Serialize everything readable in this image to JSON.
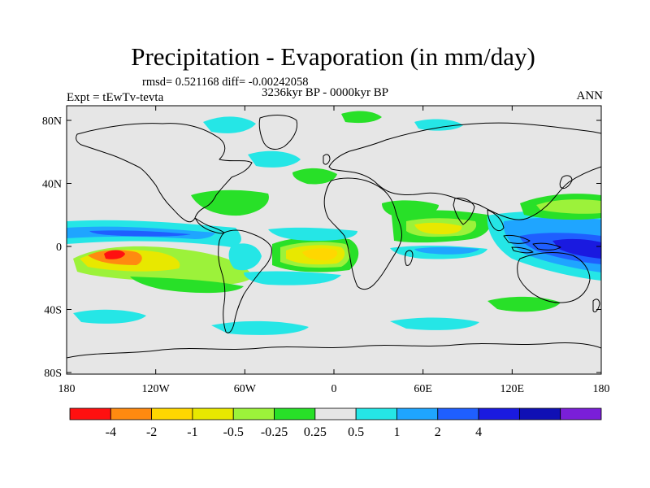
{
  "title": "Precipitation - Evaporation (in mm/day)",
  "stats": "rmsd= 0.521168 diff= -0.00242058",
  "expt": "Expt = tEwTv-tevta",
  "period": "3236kyr BP - 0000kyr BP",
  "season": "ANN",
  "lat_ticks": [
    "80N",
    "40N",
    "0",
    "40S",
    "80S"
  ],
  "lon_ticks": [
    "180",
    "120W",
    "60W",
    "0",
    "60E",
    "120E",
    "180"
  ],
  "colorbar": {
    "colors": [
      "#ff1010",
      "#ff8a10",
      "#ffd700",
      "#e8e800",
      "#9cf23a",
      "#28e028",
      "#e6e6e6",
      "#25e6e6",
      "#1fa5ff",
      "#1f5fff",
      "#1a1ae0",
      "#1010b4",
      "#7a1fd8"
    ],
    "labels": [
      "-4",
      "-2",
      "-1",
      "-0.5",
      "-0.25",
      "0.25",
      "0.5",
      "1",
      "2",
      "4"
    ]
  },
  "colors": {
    "ocean": "#e6e6e6",
    "coast": "#000000"
  }
}
